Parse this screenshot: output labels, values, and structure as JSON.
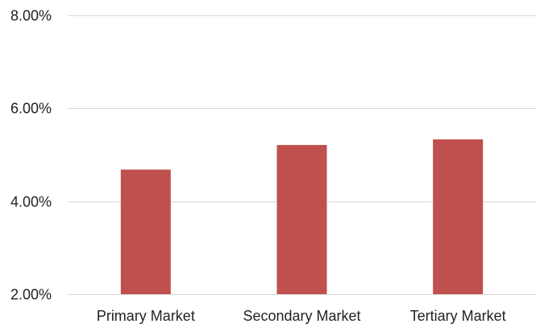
{
  "chart_data": {
    "type": "bar",
    "categories": [
      "Primary Market",
      "Secondary Market",
      "Tertiary Market"
    ],
    "values": [
      4.68,
      5.21,
      5.33
    ],
    "ylim": [
      2,
      8
    ],
    "yticks": [
      2,
      4,
      6,
      8
    ],
    "ytick_labels": [
      "2.00%",
      "4.00%",
      "6.00%",
      "8.00%"
    ],
    "grid": true,
    "legend": "none",
    "title": "",
    "xlabel": "",
    "ylabel": ""
  },
  "colors": {
    "bar": "#c0504d",
    "grid": "#d9d9d9",
    "text": "#222222"
  }
}
